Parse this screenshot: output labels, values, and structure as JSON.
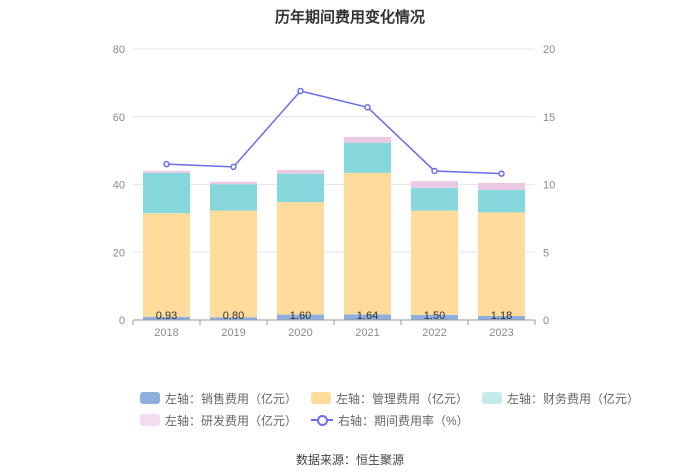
{
  "chart_data": {
    "type": "bar",
    "title": "历年期间费用变化情况",
    "categories": [
      "2018",
      "2019",
      "2020",
      "2021",
      "2022",
      "2023"
    ],
    "series": [
      {
        "name": "左轴：销售费用（亿元）",
        "axis": "left",
        "color": "#8eaee0",
        "values": [
          0.93,
          0.8,
          1.6,
          1.64,
          1.5,
          1.18
        ],
        "labels": [
          "0.93",
          "0.80",
          "1.60",
          "1.64",
          "1.50",
          "1.18"
        ]
      },
      {
        "name": "左轴：管理费用（亿元）",
        "axis": "left",
        "color": "#ffdb9c",
        "values": [
          30.6,
          31.5,
          33.2,
          41.8,
          30.8,
          30.6
        ]
      },
      {
        "name": "左轴：财务费用（亿元）",
        "axis": "left",
        "color": "#86d7dc",
        "values": [
          11.9,
          7.8,
          8.4,
          8.9,
          6.7,
          6.6
        ]
      },
      {
        "name": "左轴：研发费用（亿元）",
        "axis": "left",
        "color": "#ebc8e4",
        "values": [
          0.6,
          0.7,
          1.1,
          1.7,
          2.0,
          2.1
        ]
      },
      {
        "name": "右轴：期间费用率（%）",
        "axis": "right",
        "type": "line",
        "color": "#6c6df0",
        "values": [
          11.5,
          11.3,
          16.9,
          15.7,
          11.0,
          10.8
        ]
      }
    ],
    "left_axis": {
      "ylim": [
        0,
        80
      ],
      "ticks": [
        0,
        20,
        40,
        60,
        80
      ]
    },
    "right_axis": {
      "ylim": [
        0,
        20
      ],
      "ticks": [
        0,
        5,
        10,
        15,
        20
      ]
    },
    "grid": true,
    "legend_position": "bottom"
  },
  "source": "数据来源：恒生聚源"
}
